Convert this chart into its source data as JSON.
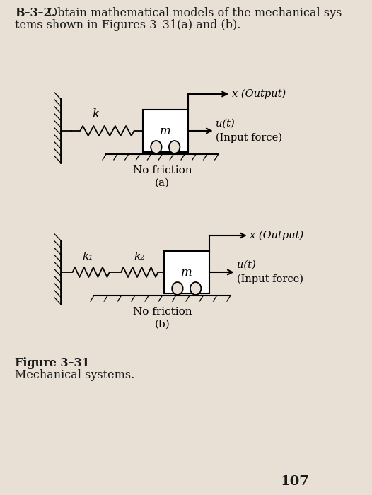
{
  "bg_color": "#e8e0d5",
  "title_bold": "B–3–2.",
  "title_rest": " Obtain mathematical models of the mechanical sys-",
  "title_line2": "tems shown in Figures 3–31(a) and (b).",
  "fig_caption_bold": "Figure 3–31",
  "fig_caption_rest": "Mechanical systems.",
  "page_number": "107",
  "diagram_a": {
    "label": "(a)",
    "sublabel": "No friction",
    "spring_label": "k",
    "mass_label": "m",
    "output_label": "x (Output)",
    "input_line1": "u(t)",
    "input_line2": "(Input force)"
  },
  "diagram_b": {
    "label": "(b)",
    "sublabel": "No friction",
    "spring1_label": "k₁",
    "spring2_label": "k₂",
    "mass_label": "m",
    "output_label": "x (Output)",
    "input_line1": "u(t)",
    "input_line2": "(Input force)"
  }
}
